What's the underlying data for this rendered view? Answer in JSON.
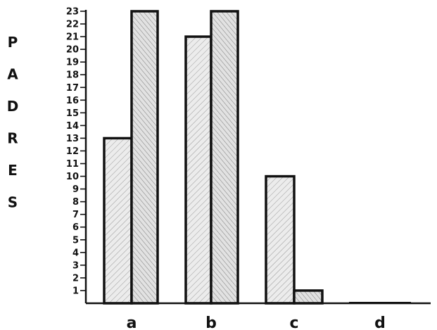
{
  "chart_data": {
    "type": "bar",
    "ylabel": "PADRES",
    "xlabel": "",
    "categories": [
      "a",
      "b",
      "c",
      "d"
    ],
    "series": [
      {
        "values": [
          13,
          21,
          10,
          0
        ]
      },
      {
        "values": [
          23,
          23,
          1,
          0
        ]
      }
    ],
    "yticks": [
      1,
      2,
      3,
      4,
      5,
      6,
      7,
      8,
      9,
      10,
      11,
      12,
      13,
      14,
      15,
      16,
      17,
      18,
      19,
      20,
      21,
      22,
      23
    ],
    "ylim": [
      0,
      23
    ],
    "grid": false,
    "legend": "none",
    "colors": {
      "ink": "#111111",
      "bar_fill": "#e6e6e6",
      "hatch": "#888888"
    }
  }
}
